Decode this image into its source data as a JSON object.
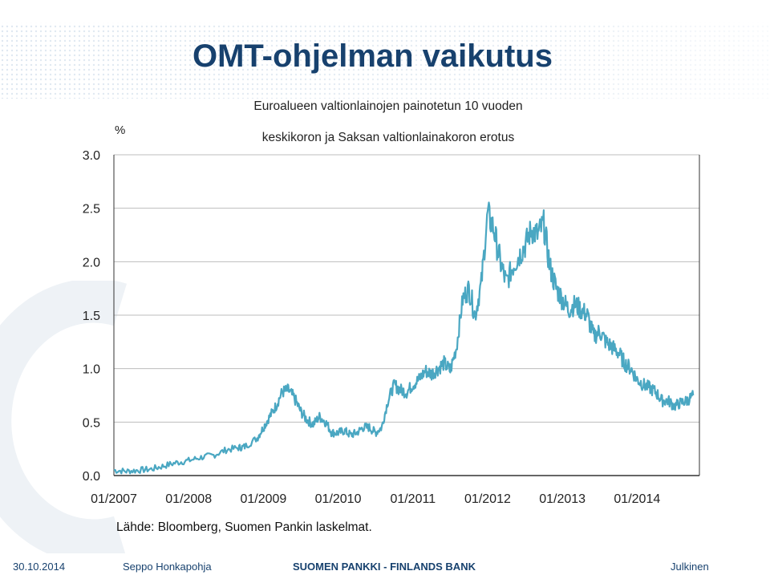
{
  "slide": {
    "title": "OMT-ohjelman vaikutus"
  },
  "footer": {
    "date": "30.10.2014",
    "author": "Seppo Honkapohja",
    "bank": "SUOMEN PANKKI - FINLANDS BANK",
    "classification": "Julkinen"
  },
  "chart_data": {
    "type": "line",
    "title": "Euroalueen valtionlainojen painotetun 10 vuoden keskikoron ja Saksan valtionlainakoron erotus",
    "ylabel": "%",
    "xlabel": "",
    "source": "Lähde: Bloomberg, Suomen Pankin laskelmat.",
    "ylim": [
      0,
      3
    ],
    "yticks": [
      "0.0",
      "0.5",
      "1.0",
      "1.5",
      "2.0",
      "2.5",
      "3.0"
    ],
    "xlim": [
      "2007-01",
      "2014-11"
    ],
    "xticks": [
      "01/2007",
      "01/2008",
      "01/2009",
      "01/2010",
      "01/2011",
      "01/2012",
      "01/2013",
      "01/2014"
    ],
    "grid": true,
    "color": "#4aa7c2",
    "series": [
      {
        "name": "",
        "x": [
          "2007-01",
          "2007-03",
          "2007-05",
          "2007-07",
          "2007-09",
          "2007-11",
          "2008-01",
          "2008-03",
          "2008-05",
          "2008-07",
          "2008-09",
          "2008-10",
          "2008-12",
          "2009-01",
          "2009-02",
          "2009-03",
          "2009-04",
          "2009-05",
          "2009-06",
          "2009-07",
          "2009-08",
          "2009-09",
          "2009-10",
          "2009-11",
          "2009-12",
          "2010-01",
          "2010-02",
          "2010-03",
          "2010-04",
          "2010-05",
          "2010-06",
          "2010-07",
          "2010-08",
          "2010-09",
          "2010-10",
          "2010-11",
          "2010-12",
          "2011-01",
          "2011-02",
          "2011-03",
          "2011-04",
          "2011-05",
          "2011-06",
          "2011-07",
          "2011-08",
          "2011-09",
          "2011-10",
          "2011-11",
          "2011-12",
          "2012-01",
          "2012-02",
          "2012-03",
          "2012-04",
          "2012-05",
          "2012-06",
          "2012-07",
          "2012-08",
          "2012-09",
          "2012-10",
          "2012-11",
          "2012-12",
          "2013-01",
          "2013-02",
          "2013-03",
          "2013-04",
          "2013-05",
          "2013-06",
          "2013-07",
          "2013-08",
          "2013-09",
          "2013-10",
          "2013-11",
          "2013-12",
          "2014-01",
          "2014-02",
          "2014-03",
          "2014-04",
          "2014-05",
          "2014-06",
          "2014-07",
          "2014-08",
          "2014-09",
          "2014-10"
        ],
        "values": [
          0.05,
          0.04,
          0.05,
          0.06,
          0.09,
          0.12,
          0.14,
          0.17,
          0.19,
          0.24,
          0.26,
          0.27,
          0.35,
          0.45,
          0.55,
          0.65,
          0.78,
          0.8,
          0.72,
          0.6,
          0.52,
          0.48,
          0.55,
          0.5,
          0.4,
          0.4,
          0.42,
          0.38,
          0.4,
          0.45,
          0.45,
          0.4,
          0.45,
          0.7,
          0.85,
          0.8,
          0.78,
          0.85,
          0.9,
          0.98,
          0.95,
          1.0,
          1.05,
          0.98,
          1.2,
          1.65,
          1.75,
          1.5,
          1.8,
          2.45,
          2.3,
          2.0,
          1.8,
          1.95,
          2.05,
          2.15,
          2.3,
          2.25,
          2.35,
          1.95,
          1.75,
          1.65,
          1.55,
          1.6,
          1.55,
          1.5,
          1.3,
          1.35,
          1.25,
          1.2,
          1.15,
          1.05,
          1.0,
          0.9,
          0.85,
          0.82,
          0.78,
          0.7,
          0.7,
          0.65,
          0.68,
          0.7,
          0.75
        ]
      }
    ]
  }
}
